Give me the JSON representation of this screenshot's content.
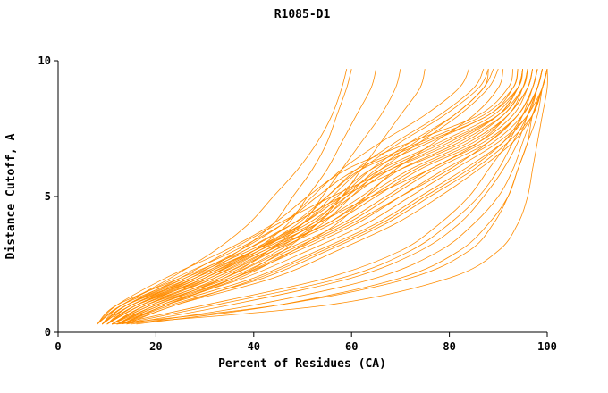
{
  "window": {
    "background": "#ffffff"
  },
  "chart_data": {
    "type": "line",
    "title": "R1085-D1",
    "xlabel": "Percent of Residues (CA)",
    "ylabel": "Distance Cutoff, A",
    "xlim": [
      0,
      100
    ],
    "ylim": [
      0,
      10
    ],
    "x_ticks": [
      0,
      20,
      40,
      60,
      80,
      100
    ],
    "y_ticks": [
      0,
      5,
      10
    ],
    "grid": false,
    "legend": "none",
    "line_color": "#FF8C00",
    "axis_color": "#000000",
    "y_grid": [
      0.3,
      1,
      2,
      3,
      4,
      5,
      6,
      7,
      8,
      9,
      9.7
    ],
    "series": [
      {
        "x": [
          8,
          12,
          25,
          38,
          48,
          55,
          62,
          75,
          88,
          93,
          94
        ]
      },
      {
        "x": [
          9,
          14,
          28,
          40,
          52,
          60,
          68,
          80,
          90,
          94,
          95
        ]
      },
      {
        "x": [
          10,
          16,
          30,
          42,
          55,
          63,
          72,
          84,
          92,
          95,
          96
        ]
      },
      {
        "x": [
          8,
          13,
          26,
          39,
          50,
          58,
          66,
          78,
          89,
          94,
          95
        ]
      },
      {
        "x": [
          9,
          15,
          29,
          41,
          53,
          62,
          70,
          82,
          91,
          95,
          96
        ]
      },
      {
        "x": [
          10,
          17,
          32,
          44,
          56,
          65,
          74,
          86,
          93,
          96,
          97
        ]
      },
      {
        "x": [
          11,
          18,
          34,
          46,
          58,
          67,
          76,
          87,
          94,
          97,
          98
        ]
      },
      {
        "x": [
          9,
          14,
          27,
          40,
          51,
          59,
          67,
          79,
          90,
          95,
          96
        ]
      },
      {
        "x": [
          10,
          16,
          31,
          43,
          55,
          64,
          73,
          85,
          92,
          96,
          97
        ]
      },
      {
        "x": [
          11,
          19,
          35,
          47,
          59,
          68,
          77,
          88,
          94,
          97,
          98
        ]
      },
      {
        "x": [
          12,
          20,
          36,
          49,
          61,
          70,
          79,
          89,
          95,
          98,
          99
        ]
      },
      {
        "x": [
          12,
          21,
          38,
          51,
          63,
          72,
          81,
          90,
          96,
          98,
          99
        ]
      },
      {
        "x": [
          13,
          22,
          40,
          53,
          65,
          74,
          83,
          91,
          96,
          99,
          100
        ]
      },
      {
        "x": [
          13,
          23,
          42,
          55,
          67,
          76,
          85,
          92,
          97,
          99,
          100
        ]
      },
      {
        "x": [
          14,
          24,
          44,
          57,
          69,
          78,
          86,
          93,
          97,
          99,
          100
        ]
      },
      {
        "x": [
          10,
          15,
          28,
          40,
          50,
          57,
          64,
          76,
          88,
          94,
          95
        ]
      },
      {
        "x": [
          9,
          13,
          24,
          36,
          46,
          53,
          61,
          74,
          87,
          93,
          94
        ]
      },
      {
        "x": [
          8,
          12,
          22,
          34,
          44,
          51,
          59,
          72,
          86,
          92,
          93
        ]
      },
      {
        "x": [
          9,
          14,
          26,
          37,
          46,
          52,
          58,
          66,
          75,
          82,
          84
        ]
      },
      {
        "x": [
          10,
          16,
          29,
          40,
          49,
          55,
          61,
          69,
          78,
          85,
          87
        ]
      },
      {
        "x": [
          11,
          18,
          32,
          43,
          52,
          58,
          64,
          72,
          81,
          87,
          89
        ]
      },
      {
        "x": [
          10,
          17,
          30,
          41,
          50,
          56,
          62,
          70,
          79,
          86,
          88
        ]
      },
      {
        "x": [
          12,
          20,
          34,
          45,
          54,
          60,
          66,
          74,
          82,
          88,
          90
        ]
      },
      {
        "x": [
          13,
          22,
          37,
          48,
          57,
          63,
          69,
          77,
          85,
          90,
          91
        ]
      },
      {
        "x": [
          11,
          19,
          33,
          44,
          53,
          59,
          65,
          73,
          81,
          87,
          88
        ]
      },
      {
        "x": [
          9,
          15,
          27,
          37,
          44,
          48,
          52,
          55,
          57,
          59,
          60
        ]
      },
      {
        "x": [
          10,
          17,
          30,
          40,
          47,
          51,
          55,
          58,
          61,
          64,
          65
        ]
      },
      {
        "x": [
          11,
          20,
          34,
          43,
          50,
          54,
          58,
          62,
          66,
          69,
          70
        ]
      },
      {
        "x": [
          12,
          22,
          36,
          46,
          53,
          58,
          62,
          66,
          70,
          74,
          75
        ]
      },
      {
        "x": [
          8,
          13,
          23,
          32,
          39,
          44,
          49,
          53,
          56,
          58,
          59
        ]
      },
      {
        "x": [
          12,
          30,
          55,
          70,
          78,
          84,
          88,
          92,
          95,
          97,
          98
        ]
      },
      {
        "x": [
          14,
          35,
          60,
          74,
          82,
          87,
          91,
          94,
          96,
          98,
          99
        ]
      },
      {
        "x": [
          15,
          40,
          65,
          78,
          85,
          90,
          93,
          95,
          97,
          99,
          100
        ]
      },
      {
        "x": [
          16,
          45,
          70,
          82,
          88,
          92,
          94,
          96,
          98,
          99,
          100
        ]
      },
      {
        "x": [
          13,
          32,
          58,
          72,
          80,
          86,
          90,
          93,
          96,
          98,
          99
        ]
      },
      {
        "x": [
          10,
          16,
          28,
          38,
          48,
          58,
          70,
          83,
          91,
          95,
          96
        ]
      },
      {
        "x": [
          11,
          18,
          31,
          42,
          53,
          64,
          76,
          86,
          92,
          96,
          97
        ]
      },
      {
        "x": [
          9,
          14,
          25,
          35,
          45,
          56,
          68,
          81,
          90,
          94,
          95
        ]
      },
      {
        "x": [
          12,
          21,
          36,
          48,
          60,
          70,
          80,
          88,
          94,
          97,
          98
        ]
      },
      {
        "x": [
          13,
          24,
          41,
          54,
          66,
          75,
          84,
          91,
          95,
          98,
          99
        ]
      },
      {
        "x": [
          12,
          55,
          80,
          90,
          94,
          96,
          97,
          98,
          99,
          100,
          100
        ]
      },
      {
        "x": [
          11,
          45,
          72,
          84,
          89,
          92,
          94,
          96,
          97,
          99,
          100
        ]
      }
    ]
  }
}
